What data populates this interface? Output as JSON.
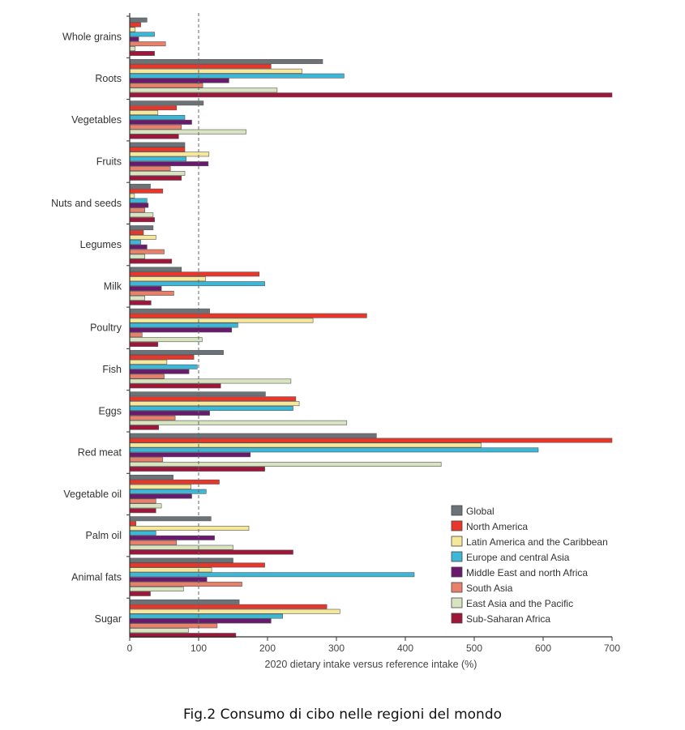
{
  "chart_data": {
    "type": "bar",
    "orientation": "horizontal",
    "categories": [
      "Whole grains",
      "Roots",
      "Vegetables",
      "Fruits",
      "Nuts and seeds",
      "Legumes",
      "Milk",
      "Poultry",
      "Fish",
      "Eggs",
      "Red meat",
      "Vegetable oil",
      "Palm oil",
      "Animal fats",
      "Sugar"
    ],
    "series": [
      {
        "name": "Global",
        "color": "#6b7378",
        "values": [
          25,
          280,
          107,
          80,
          30,
          34,
          75,
          116,
          136,
          197,
          358,
          63,
          118,
          150,
          159
        ]
      },
      {
        "name": "North America",
        "color": "#e8372a",
        "values": [
          16,
          205,
          68,
          80,
          48,
          20,
          188,
          344,
          93,
          241,
          700,
          130,
          9,
          196,
          286
        ]
      },
      {
        "name": "Latin America and the Caribbean",
        "color": "#f5e89a",
        "values": [
          8,
          250,
          41,
          115,
          7,
          38,
          110,
          266,
          54,
          246,
          510,
          89,
          173,
          119,
          305
        ]
      },
      {
        "name": "Europe and central Asia",
        "color": "#3bb8d8",
        "values": [
          36,
          311,
          80,
          82,
          25,
          16,
          196,
          157,
          98,
          237,
          593,
          111,
          38,
          413,
          222
        ]
      },
      {
        "name": "Middle East and north Africa",
        "color": "#6a1a6e",
        "values": [
          13,
          144,
          90,
          114,
          27,
          25,
          46,
          148,
          86,
          116,
          175,
          90,
          123,
          112,
          205
        ]
      },
      {
        "name": "South Asia",
        "color": "#e8806a",
        "values": [
          52,
          106,
          75,
          59,
          22,
          50,
          64,
          18,
          50,
          66,
          48,
          38,
          68,
          163,
          127
        ]
      },
      {
        "name": "East Asia and the Pacific",
        "color": "#d8e4c0",
        "values": [
          8,
          214,
          169,
          80,
          34,
          22,
          22,
          105,
          234,
          315,
          452,
          46,
          150,
          78,
          85
        ]
      },
      {
        "name": "Sub-Saharan Africa",
        "color": "#a0163a",
        "values": [
          36,
          700,
          71,
          75,
          36,
          61,
          31,
          41,
          132,
          42,
          196,
          38,
          237,
          30,
          154
        ]
      }
    ],
    "xlabel": "2020 dietary intake versus reference intake (%)",
    "xlim": [
      0,
      700
    ],
    "xticks": [
      "0",
      "100",
      "200",
      "300",
      "400",
      "500",
      "600",
      "700"
    ],
    "reference_line": 100,
    "legend_position": "bottom-right",
    "grid": false
  },
  "caption": "Fig.2 Consumo di cibo nelle regioni del mondo"
}
